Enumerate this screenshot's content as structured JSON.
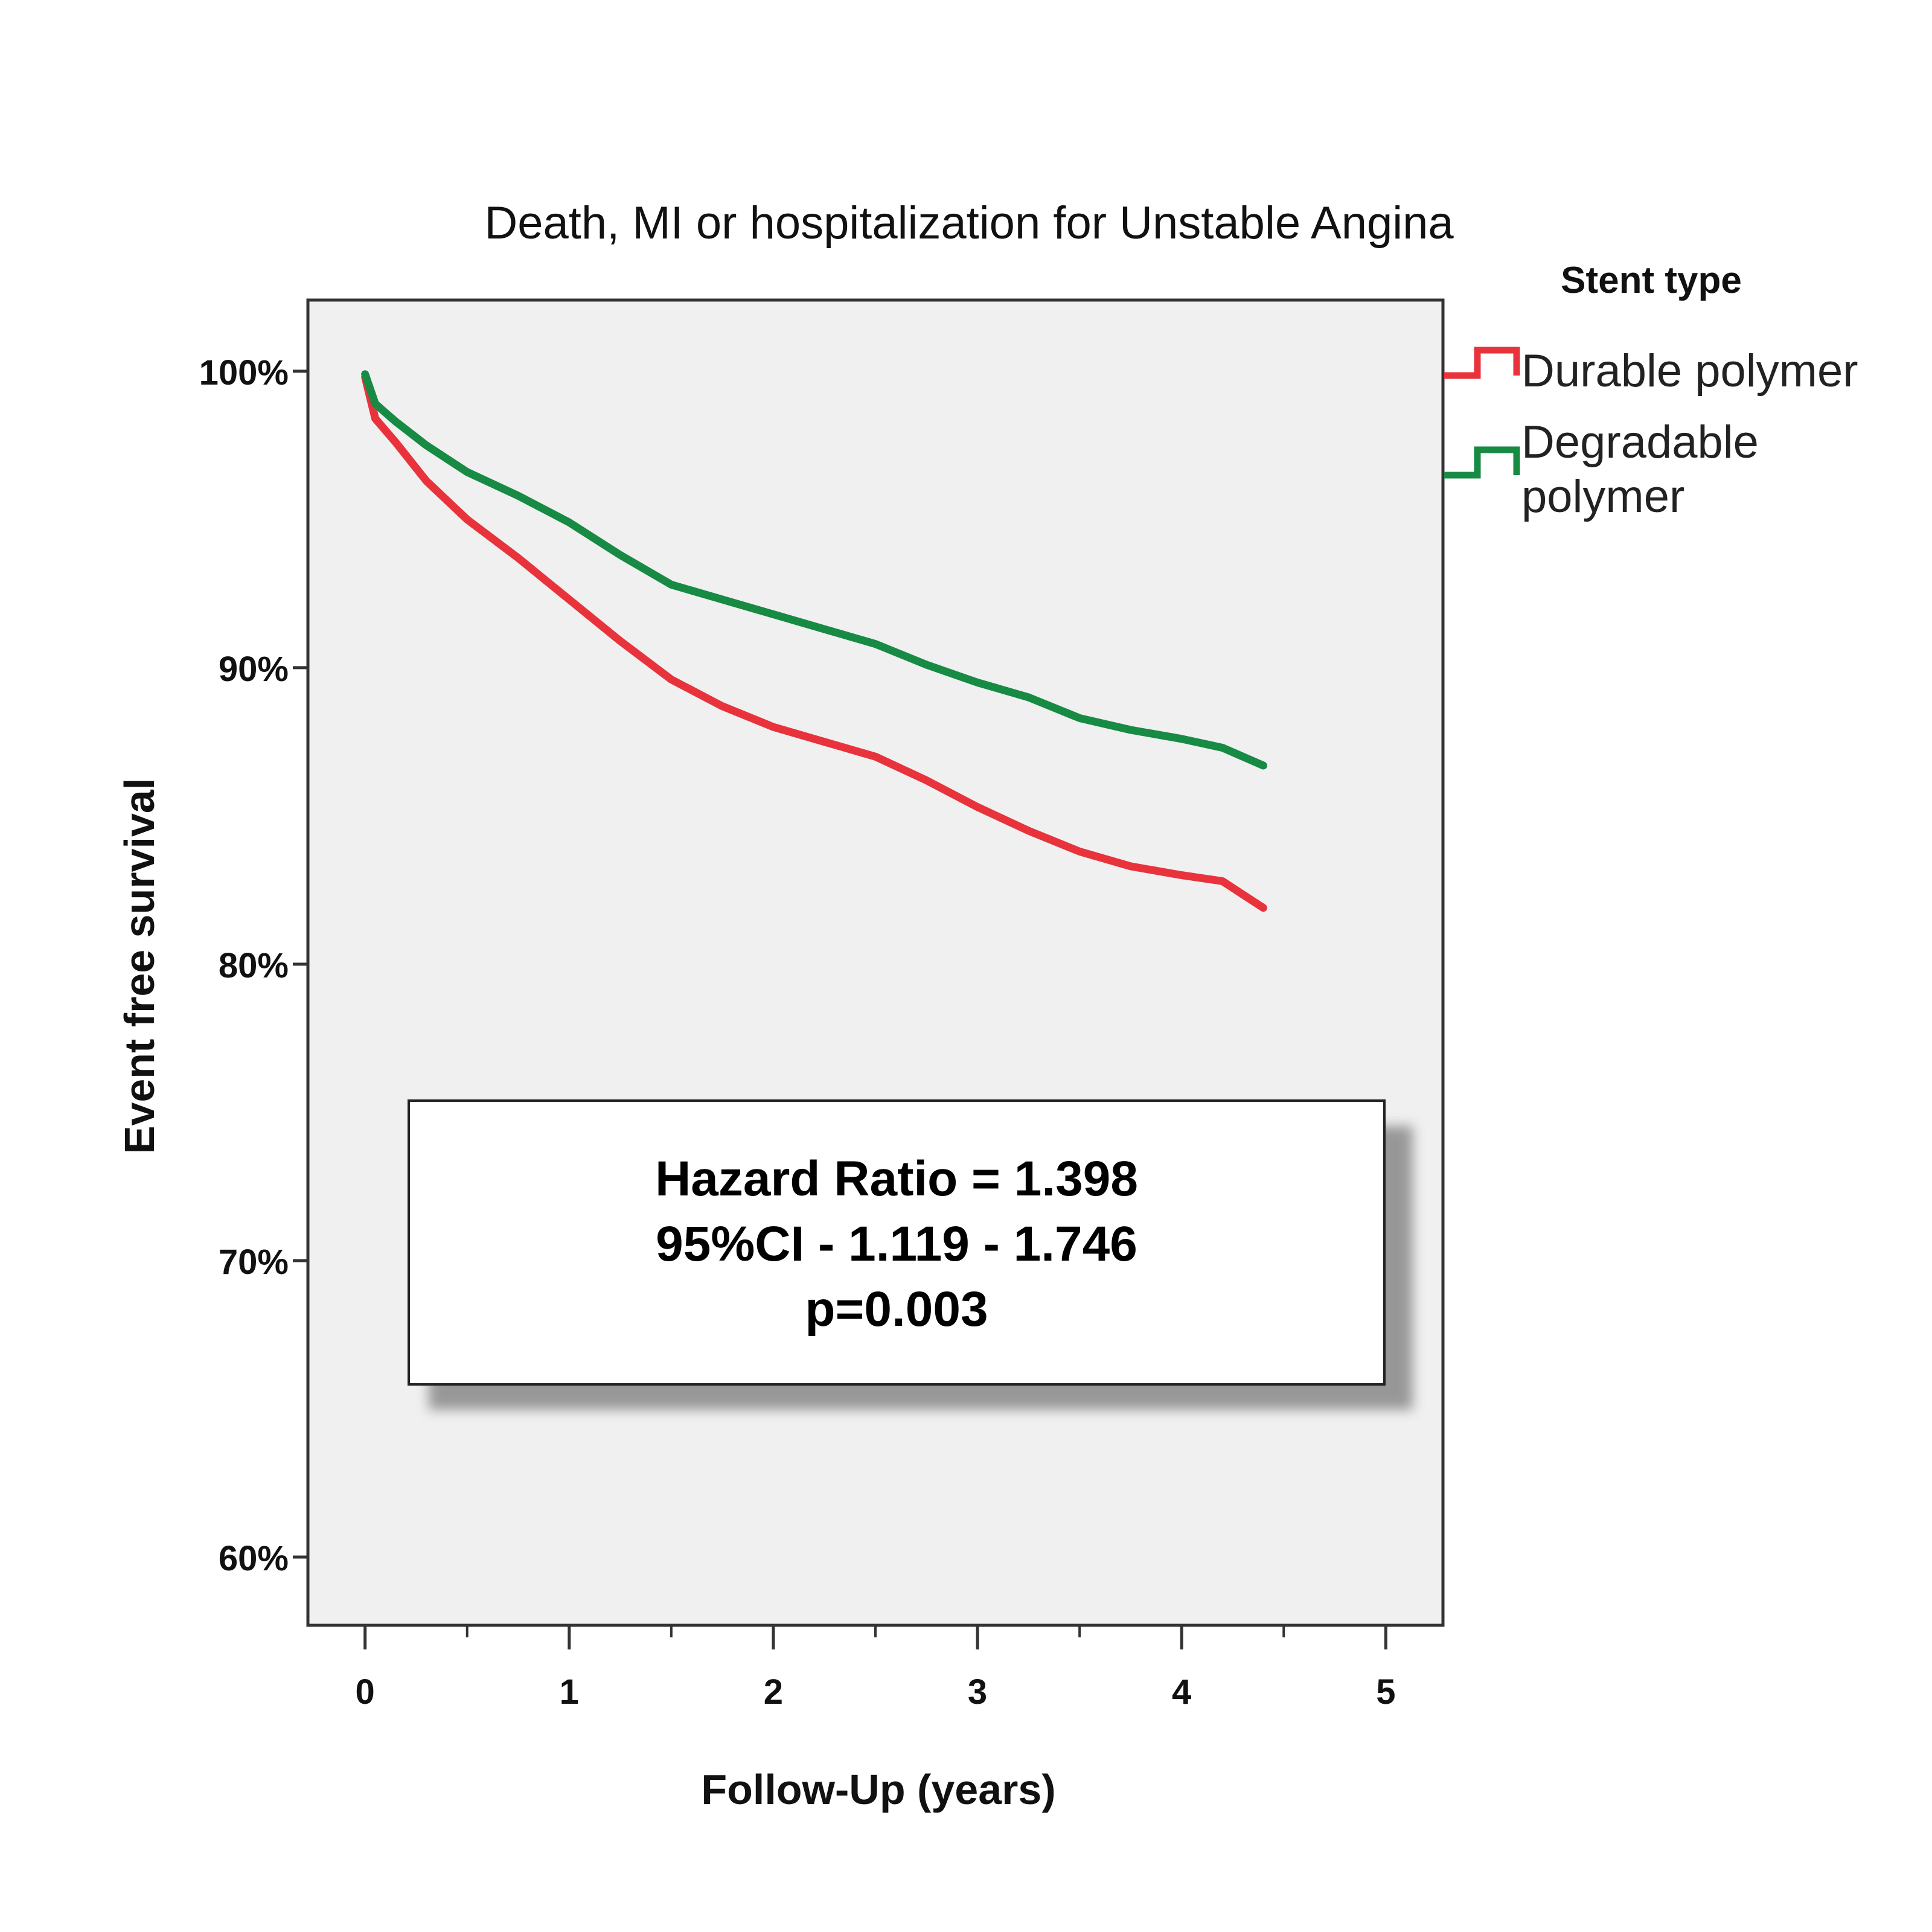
{
  "chart_data": {
    "type": "line",
    "title": "Death, MI or hospitalization for Unstable Angina",
    "xlabel": "Follow-Up (years)",
    "ylabel": "Event free survival",
    "xlim": [
      -0.28,
      5.28
    ],
    "ylim": [
      57.7,
      102.4
    ],
    "x_ticks": [
      0,
      1,
      2,
      3,
      4,
      5
    ],
    "x_tick_labels": [
      "0",
      "1",
      "2",
      "3",
      "4",
      "5"
    ],
    "y_ticks": [
      60,
      70,
      80,
      90,
      100
    ],
    "y_tick_labels": [
      "60%",
      "70%",
      "80%",
      "90%",
      "100%"
    ],
    "grid": false,
    "legend": {
      "title": "Stent type",
      "position": "right-top"
    },
    "series": [
      {
        "name": "Durable polymer",
        "color": "#e8333c",
        "x": [
          0,
          0.05,
          0.15,
          0.3,
          0.5,
          0.75,
          1.0,
          1.25,
          1.5,
          1.75,
          2.0,
          2.25,
          2.5,
          2.75,
          3.0,
          3.25,
          3.5,
          3.75,
          4.0,
          4.2,
          4.4
        ],
        "y": [
          99.8,
          98.4,
          97.6,
          96.3,
          95.0,
          93.7,
          92.3,
          90.9,
          89.6,
          88.7,
          88.0,
          87.5,
          87.0,
          86.2,
          85.3,
          84.5,
          83.8,
          83.3,
          83.0,
          82.8,
          81.9
        ]
      },
      {
        "name": "Degradable polymer",
        "color": "#178a44",
        "x": [
          0,
          0.05,
          0.15,
          0.3,
          0.5,
          0.75,
          1.0,
          1.25,
          1.5,
          1.75,
          2.0,
          2.25,
          2.5,
          2.75,
          3.0,
          3.25,
          3.5,
          3.75,
          4.0,
          4.2,
          4.4
        ],
        "y": [
          99.9,
          98.9,
          98.3,
          97.5,
          96.6,
          95.8,
          94.9,
          93.8,
          92.8,
          92.3,
          91.8,
          91.3,
          90.8,
          90.1,
          89.5,
          89.0,
          88.3,
          87.9,
          87.6,
          87.3,
          86.7
        ]
      }
    ],
    "annotation": {
      "lines": [
        "Hazard Ratio = 1.398",
        "95%CI - 1.119 - 1.746",
        "p=0.003"
      ]
    }
  },
  "colors": {
    "plot_background": "#f0f0f0",
    "axis": "#333333"
  }
}
